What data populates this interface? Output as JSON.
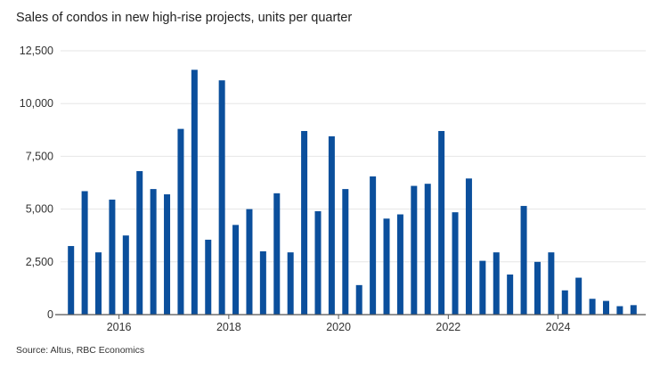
{
  "chart_data": {
    "type": "bar",
    "title": "Sales of condos in new high-rise projects, units per quarter",
    "source": "Source: Altus, RBC Economics",
    "xlabel": "",
    "ylabel": "",
    "ylim": [
      0,
      12500
    ],
    "yticks": [
      0,
      2500,
      5000,
      7500,
      10000,
      12500
    ],
    "ytick_labels": [
      "0",
      "2,500",
      "5,000",
      "7,500",
      "10,000",
      "12,500"
    ],
    "xtick_labels": [
      "2016",
      "2018",
      "2020",
      "2022",
      "2024"
    ],
    "grid": true,
    "color": "#0b4f9c",
    "categories": [
      "2015Q1",
      "2015Q2",
      "2015Q3",
      "2015Q4",
      "2016Q1",
      "2016Q2",
      "2016Q3",
      "2016Q4",
      "2017Q1",
      "2017Q2",
      "2017Q3",
      "2017Q4",
      "2018Q1",
      "2018Q2",
      "2018Q3",
      "2018Q4",
      "2019Q1",
      "2019Q2",
      "2019Q3",
      "2019Q4",
      "2020Q1",
      "2020Q2",
      "2020Q3",
      "2020Q4",
      "2021Q1",
      "2021Q2",
      "2021Q3",
      "2021Q4",
      "2022Q1",
      "2022Q2",
      "2022Q3",
      "2022Q4",
      "2023Q1",
      "2023Q2",
      "2023Q3",
      "2023Q4",
      "2024Q1",
      "2024Q2",
      "2024Q3",
      "2024Q4",
      "2025Q1",
      "2025Q2"
    ],
    "values": [
      3250,
      5850,
      2950,
      5450,
      3750,
      6800,
      5950,
      5700,
      8800,
      11600,
      3550,
      11100,
      4250,
      5000,
      3000,
      5750,
      2950,
      8700,
      4900,
      8450,
      5950,
      1400,
      6550,
      4550,
      4750,
      6100,
      6200,
      8700,
      4850,
      6450,
      2550,
      2950,
      1900,
      5150,
      2500,
      2950,
      1150,
      1750,
      750,
      650,
      400,
      450
    ]
  }
}
